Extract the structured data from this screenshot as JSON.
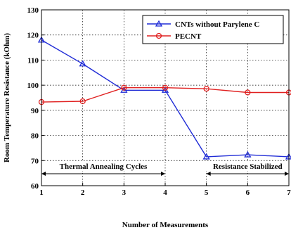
{
  "chart_data": {
    "type": "line",
    "xlabel": "Number of Measurements",
    "ylabel": "Room Temperature Resistance (kOhm)",
    "x": [
      1,
      2,
      3,
      4,
      5,
      6,
      7
    ],
    "xlim": [
      1,
      7
    ],
    "ylim": [
      60,
      130
    ],
    "xticks": [
      "1",
      "2",
      "3",
      "4",
      "5",
      "6",
      "7"
    ],
    "yticks": [
      "60",
      "70",
      "80",
      "90",
      "100",
      "110",
      "120",
      "130"
    ],
    "grid": true,
    "legend_position": "top-right",
    "series": [
      {
        "name": "CNTs without Parylene C",
        "color": "#1f2bd6",
        "marker": "triangle",
        "values": [
          118,
          108.5,
          98,
          98,
          71.5,
          72.3,
          71.5
        ]
      },
      {
        "name": "PECNT",
        "color": "#e02020",
        "marker": "circle",
        "values": [
          93.3,
          93.6,
          99,
          99,
          98.6,
          97.1,
          97.1
        ]
      }
    ],
    "annotations": [
      {
        "text": "Thermal Annealing Cycles",
        "x_start": 1,
        "x_end": 4,
        "y": 67
      },
      {
        "text": "Resistance Stabilized",
        "x_start": 5,
        "x_end": 7,
        "y": 67
      }
    ]
  }
}
